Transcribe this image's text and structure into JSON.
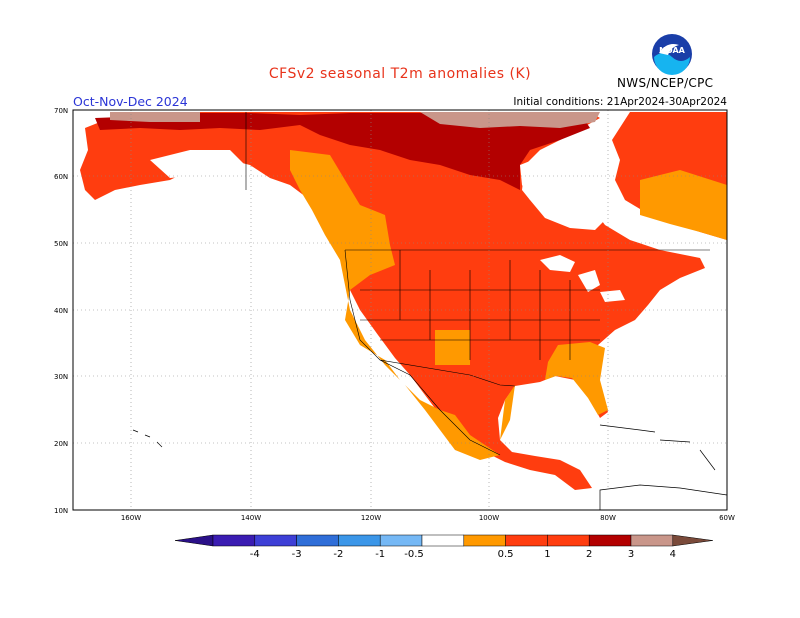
{
  "header": {
    "title": "CFSv2 seasonal T2m anomalies (K)",
    "season": "Oct-Nov-Dec 2024",
    "initial_conditions": "Initial conditions: 21Apr2024-30Apr2024",
    "agency": "NWS/NCEP/CPC",
    "logo_text": "NOAA"
  },
  "colors": {
    "title": "#e8331b",
    "season": "#2b35d6",
    "ocean": "#ffffff",
    "land_neutral": "#ffffff",
    "bin_0_5_1": "#ff9900",
    "bin_1_2": "#ff3d0f",
    "bin_2_3": "#b30000",
    "bin_3_4": "#c9968a",
    "bin_gt4": "#7a4a3a"
  },
  "axes": {
    "lat_labels": [
      "70N",
      "60N",
      "50N",
      "40N",
      "30N",
      "20N",
      "10N"
    ],
    "lon_labels": [
      "160W",
      "140W",
      "120W",
      "100W",
      "80W",
      "60W"
    ]
  },
  "legend": {
    "items": [
      {
        "label": "-4",
        "color": "#3a1cb2"
      },
      {
        "label": "-3",
        "color": "#3d3fd6"
      },
      {
        "label": "-2",
        "color": "#2f6ed8"
      },
      {
        "label": "-1",
        "color": "#3b96e8"
      },
      {
        "label": "-0.5",
        "color": "#75b8f5"
      },
      {
        "label": "",
        "color": "#ffffff"
      },
      {
        "label": "0.5",
        "color": "#ff9900"
      },
      {
        "label": "1",
        "color": "#ff3d0f"
      },
      {
        "label": "2",
        "color": "#ff3d0f"
      },
      {
        "label": "3",
        "color": "#b30000"
      },
      {
        "label": "4",
        "color": "#c9968a"
      }
    ],
    "left_arrow_color": "#2a1088",
    "right_arrow_color": "#7a4a3a"
  }
}
